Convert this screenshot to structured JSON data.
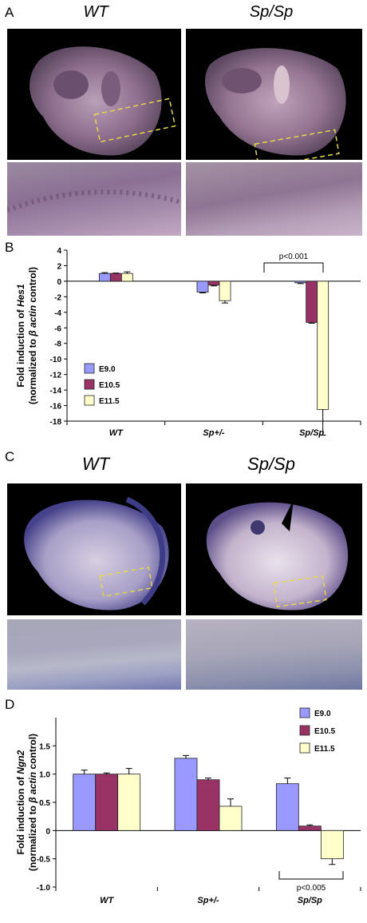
{
  "figure": {
    "panel_a": {
      "letter": "A",
      "genotypes": [
        "WT",
        "Sp/Sp"
      ]
    },
    "panel_b": {
      "letter": "B"
    },
    "panel_c": {
      "letter": "C",
      "genotypes": [
        "WT",
        "Sp/Sp"
      ]
    },
    "panel_d": {
      "letter": "D"
    }
  },
  "chart_data": [
    {
      "id": "B",
      "type": "bar",
      "categories": [
        "WT",
        "Sp+/-",
        "Sp/Sp"
      ],
      "series": [
        {
          "name": "E9.0",
          "values": [
            1.0,
            -1.4,
            -0.2
          ],
          "errors": [
            0.1,
            0.1,
            0.1
          ],
          "color": "#9999ff"
        },
        {
          "name": "E10.5",
          "values": [
            1.0,
            -0.5,
            -5.3
          ],
          "errors": [
            0.05,
            0.1,
            0.1
          ],
          "color": "#993366"
        },
        {
          "name": "E11.5",
          "values": [
            1.0,
            -2.5,
            -16.5
          ],
          "errors": [
            0.2,
            0.3,
            3.3
          ],
          "color": "#ffffcc"
        }
      ],
      "ylabel_line1": "Fold induction of Hes1",
      "ylabel_line1_plain": "Fold induction of ",
      "ylabel_line1_gene": "Hes1",
      "ylabel_line2_plain_a": "(normalized to ",
      "ylabel_line2_beta": "β actin",
      "ylabel_line2_plain_b": " control)",
      "ylim": [
        -18,
        4
      ],
      "yticks": [
        "4",
        "2",
        "0",
        "-2",
        "-4",
        "-6",
        "-8",
        "-10",
        "-12",
        "-14",
        "-16",
        "-18"
      ],
      "ytick_values": [
        4,
        2,
        0,
        -2,
        -4,
        -6,
        -8,
        -10,
        -12,
        -14,
        -16,
        -18
      ],
      "legend": [
        "E9.0",
        "E10.5",
        "E11.5"
      ],
      "legend_position": "bottom-left",
      "annotation": "p<0.001"
    },
    {
      "id": "D",
      "type": "bar",
      "categories": [
        "WT",
        "Sp+/-",
        "Sp/Sp"
      ],
      "series": [
        {
          "name": "E9.0",
          "values": [
            1.0,
            1.28,
            0.83
          ],
          "errors": [
            0.07,
            0.05,
            0.1
          ],
          "color": "#9999ff"
        },
        {
          "name": "E10.5",
          "values": [
            1.0,
            0.9,
            0.08
          ],
          "errors": [
            0.02,
            0.03,
            0.02
          ],
          "color": "#993366"
        },
        {
          "name": "E11.5",
          "values": [
            1.0,
            0.43,
            -0.5
          ],
          "errors": [
            0.1,
            0.13,
            0.1
          ],
          "color": "#ffffcc"
        }
      ],
      "ylabel_line1_plain": "Fold induction of ",
      "ylabel_line1_gene": "Ngn2",
      "ylabel_line2_plain_a": "(normalized to ",
      "ylabel_line2_beta": "β actin",
      "ylabel_line2_plain_b": " control)",
      "ylim": [
        -1.0,
        2.0
      ],
      "yticks": [
        "1.5",
        "1.0",
        "0.5",
        "0",
        "-0.5",
        "-1.0"
      ],
      "ytick_values": [
        1.5,
        1.0,
        0.5,
        0,
        -0.5,
        -1.0
      ],
      "legend": [
        "E9.0",
        "E10.5",
        "E11.5"
      ],
      "legend_position": "top-right",
      "annotation": "p<0.005"
    }
  ]
}
